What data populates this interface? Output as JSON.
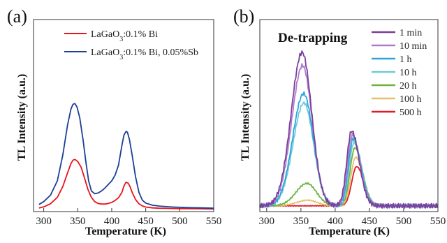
{
  "chart_data": [
    {
      "panel_label": "(a)",
      "type": "line",
      "xlabel": "Temperature (K)",
      "ylabel": "TL Intensity (a.u.)",
      "xlim": [
        285,
        550
      ],
      "ylim": [
        0,
        1.0
      ],
      "x_ticks": [
        "300",
        "350",
        "400",
        "450",
        "500",
        "550"
      ],
      "y_ticks": [],
      "grid": false,
      "legend_position": "top-left",
      "legend_html": [
        "LaGaO<tspan baseline-shift=\"sub\" font-size=\"10\">3</tspan>:0.1% Bi",
        "LaGaO<tspan baseline-shift=\"sub\" font-size=\"10\">3</tspan>:0.1% Bi, 0.05%Sb"
      ],
      "series": [
        {
          "name": "LaGaO3:0.1% Bi",
          "color": "#e8141c",
          "x": [
            293,
            300,
            310,
            320,
            328,
            335,
            340,
            343,
            346,
            350,
            355,
            360,
            365,
            370,
            375,
            380,
            385,
            390,
            395,
            400,
            405,
            410,
            415,
            418,
            421,
            424,
            427,
            430,
            435,
            440,
            445,
            450,
            460,
            470,
            480,
            490,
            500,
            510,
            520,
            530,
            540,
            550
          ],
          "y": [
            0.01,
            0.018,
            0.04,
            0.085,
            0.16,
            0.255,
            0.32,
            0.345,
            0.35,
            0.335,
            0.295,
            0.22,
            0.14,
            0.085,
            0.055,
            0.042,
            0.038,
            0.038,
            0.042,
            0.05,
            0.063,
            0.082,
            0.12,
            0.165,
            0.19,
            0.185,
            0.16,
            0.12,
            0.07,
            0.04,
            0.025,
            0.017,
            0.011,
            0.009,
            0.008,
            0.007,
            0.006,
            0.006,
            0.005,
            0.005,
            0.004,
            0.004
          ]
        },
        {
          "name": "LaGaO3:0.1% Bi, 0.05%Sb",
          "color": "#1a3f94",
          "x": [
            293,
            300,
            310,
            320,
            328,
            335,
            340,
            343,
            346,
            349,
            353,
            358,
            362,
            366,
            370,
            375,
            380,
            385,
            390,
            395,
            400,
            405,
            410,
            415,
            418,
            421,
            423,
            426,
            430,
            435,
            440,
            445,
            450,
            460,
            470,
            480,
            490,
            500,
            510,
            520,
            530,
            540,
            550
          ],
          "y": [
            0.035,
            0.055,
            0.1,
            0.2,
            0.38,
            0.59,
            0.7,
            0.735,
            0.74,
            0.715,
            0.64,
            0.48,
            0.33,
            0.2,
            0.13,
            0.11,
            0.115,
            0.13,
            0.15,
            0.175,
            0.2,
            0.24,
            0.31,
            0.45,
            0.52,
            0.545,
            0.54,
            0.49,
            0.38,
            0.23,
            0.12,
            0.065,
            0.045,
            0.03,
            0.024,
            0.02,
            0.017,
            0.015,
            0.013,
            0.012,
            0.011,
            0.01,
            0.009
          ]
        }
      ]
    },
    {
      "panel_label": "(b)",
      "type": "line",
      "annotation": "De-trapping",
      "xlabel": "Temperature (K)",
      "ylabel": "TL Intensity (a.u.)",
      "xlim": [
        290,
        550
      ],
      "ylim": [
        0,
        1.0
      ],
      "x_ticks": [
        "300",
        "350",
        "400",
        "450",
        "500",
        "550"
      ],
      "y_ticks": [],
      "grid": false,
      "legend_position": "top-right",
      "series": [
        {
          "name": "1 min",
          "color": "#7b3f98",
          "amp1": 0.82,
          "amp2": 0.4
        },
        {
          "name": "10 min",
          "color": "#b07ad0",
          "amp1": 0.75,
          "amp2": 0.38
        },
        {
          "name": "1 h",
          "color": "#2aa6de",
          "amp1": 0.6,
          "amp2": 0.36
        },
        {
          "name": "10 h",
          "color": "#6fc9d8",
          "amp1": 0.55,
          "amp2": 0.34
        },
        {
          "name": "20 h",
          "color": "#6cb33f",
          "amp1": 0.12,
          "amp2": 0.31
        },
        {
          "name": "100 h",
          "color": "#e3c06f",
          "amp1": 0.03,
          "amp2": 0.26
        },
        {
          "name": "500 h",
          "color": "#e31b23",
          "amp1": 0.0,
          "amp2": 0.21
        }
      ]
    }
  ]
}
